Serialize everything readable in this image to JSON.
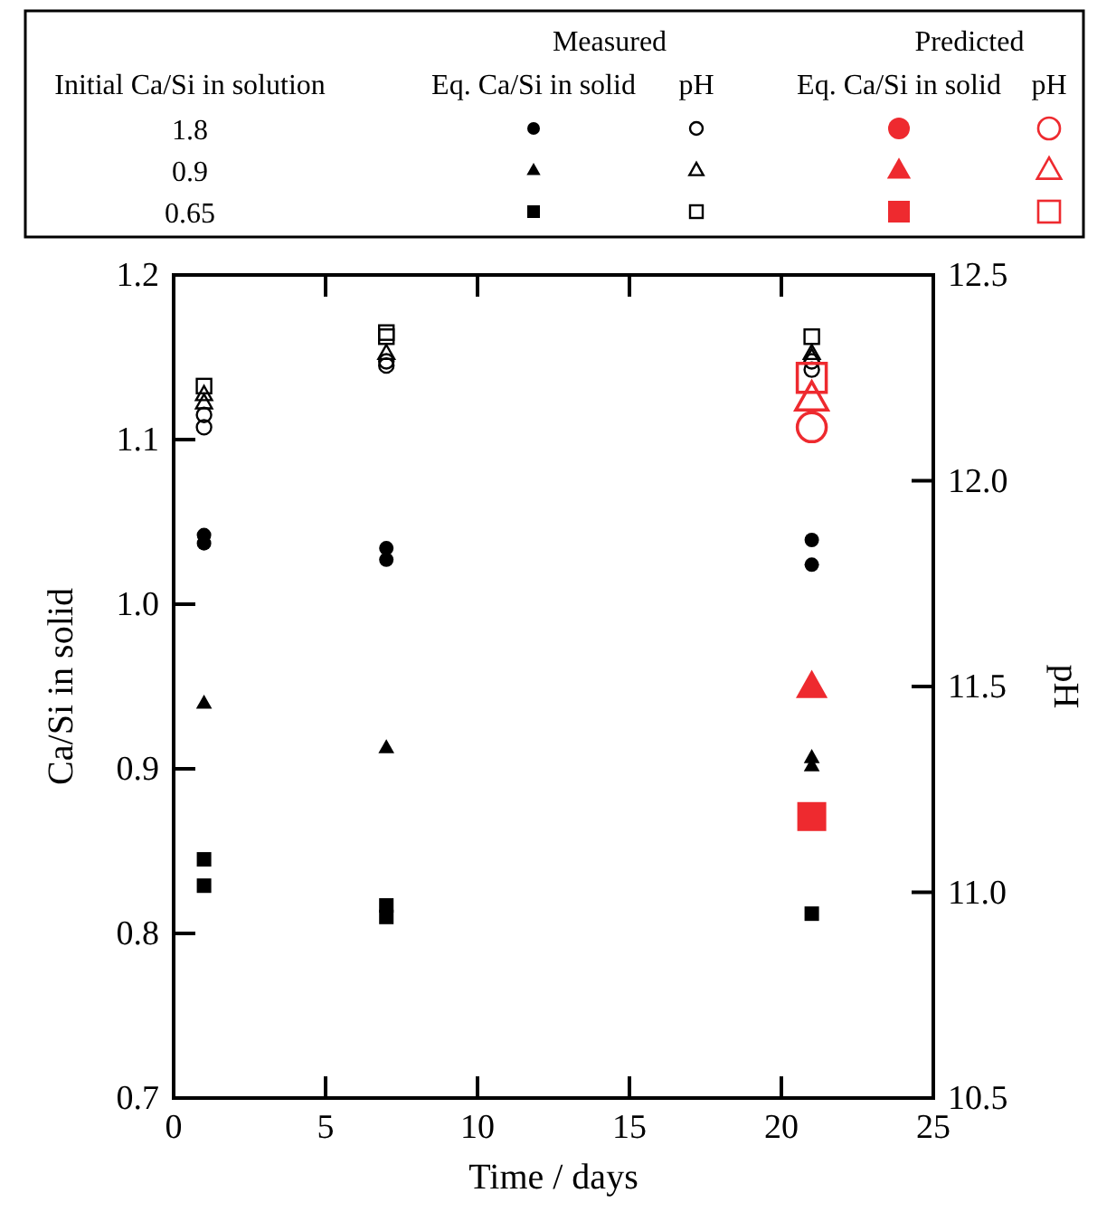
{
  "chart_data": {
    "type": "scatter",
    "xlabel": "Time / days",
    "ylabel": "Ca/Si in solid",
    "y2label": "pH",
    "xlim": [
      0,
      25
    ],
    "xticks": [
      0,
      5,
      10,
      15,
      20,
      25
    ],
    "ylim": [
      0.7,
      1.2
    ],
    "yticks": [
      0.7,
      0.8,
      0.9,
      {
        "value": 1,
        "label": "1.0"
      },
      1.1,
      1.2
    ],
    "y2lim": [
      10.5,
      12.5
    ],
    "y2ticks": [
      10.5,
      {
        "value": 11,
        "label": "11.0"
      },
      11.5,
      {
        "value": 12,
        "label": "12.0"
      },
      12.5
    ],
    "annotations": [
      "Initial Ca/Si in solution",
      "Measured",
      "Predicted",
      "Eq. Ca/Si in solid",
      "pH",
      "Eq. Ca/Si in solid",
      "pH",
      "1.8",
      "0.9",
      "0.65"
    ],
    "series": [
      {
        "color": "#000000",
        "marker": "circle",
        "x": [
          1,
          1,
          7,
          7,
          21,
          21
        ],
        "values": [
          1.042,
          1.037,
          1.034,
          1.027,
          1.039,
          1.024
        ]
      },
      {
        "color": "#000000",
        "marker": "triangle",
        "x": [
          1,
          7,
          21,
          21
        ],
        "values": [
          0.94,
          0.913,
          0.907,
          0.902
        ]
      },
      {
        "color": "#000000",
        "marker": "square",
        "x": [
          1,
          1,
          7,
          7,
          21
        ],
        "values": [
          0.845,
          0.829,
          0.817,
          0.81,
          0.812
        ]
      },
      {
        "color": "#000000",
        "marker": "circle",
        "axis": "y2",
        "x": [
          1,
          1,
          7,
          7,
          21,
          21
        ],
        "values": [
          12.16,
          12.13,
          12.29,
          12.28,
          12.29,
          12.27
        ]
      },
      {
        "color": "#000000",
        "marker": "triangle",
        "axis": "y2",
        "x": [
          1,
          1,
          7,
          21,
          21
        ],
        "values": [
          12.21,
          12.19,
          12.31,
          12.31,
          12.3
        ]
      },
      {
        "color": "#000000",
        "marker": "square",
        "axis": "y2",
        "x": [
          1,
          7,
          7,
          21
        ],
        "values": [
          12.23,
          12.36,
          12.35,
          12.35
        ]
      },
      {
        "color": "#ee2a2f",
        "marker": "triangle",
        "x": [
          21
        ],
        "values": [
          0.95
        ]
      },
      {
        "color": "#ee2a2f",
        "marker": "square",
        "x": [
          21
        ],
        "values": [
          0.871
        ]
      },
      {
        "color": "#ee2a2f",
        "marker": "circle",
        "axis": "y2",
        "x": [
          21
        ],
        "values": [
          12.13
        ]
      },
      {
        "color": "#ee2a2f",
        "marker": "triangle",
        "axis": "y2",
        "x": [
          21
        ],
        "values": [
          12.2
        ]
      },
      {
        "color": "#ee2a2f",
        "marker": "square",
        "axis": "y2",
        "x": [
          21
        ],
        "values": [
          12.25
        ]
      }
    ]
  }
}
